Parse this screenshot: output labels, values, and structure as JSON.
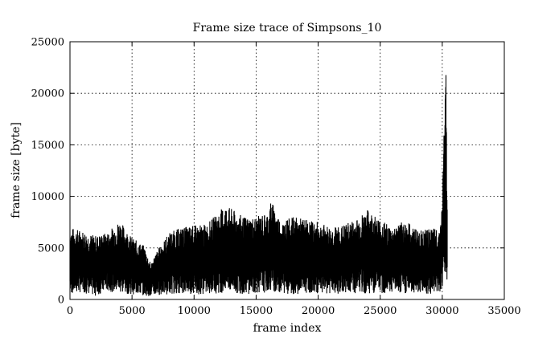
{
  "chart_data": {
    "type": "line",
    "title": "Frame size trace of Simpsons_10",
    "xlabel": "frame index",
    "ylabel": "frame size [byte]",
    "xlim": [
      0,
      35000
    ],
    "ylim": [
      0,
      25000
    ],
    "x_ticks": [
      "0",
      "5000",
      "10000",
      "15000",
      "20000",
      "25000",
      "30000",
      "35000"
    ],
    "y_ticks": [
      "0",
      "5000",
      "10000",
      "15000",
      "20000",
      "25000"
    ],
    "grid": "dotted",
    "series": [
      {
        "color": "#000000",
        "frame_count": 30400,
        "envelope": [
          {
            "x": 0,
            "low": 500,
            "high": 7000
          },
          {
            "x": 1000,
            "low": 700,
            "high": 6700
          },
          {
            "x": 2000,
            "low": 300,
            "high": 6200
          },
          {
            "x": 3000,
            "low": 800,
            "high": 6500
          },
          {
            "x": 4000,
            "low": 600,
            "high": 7700
          },
          {
            "x": 5000,
            "low": 500,
            "high": 6000
          },
          {
            "x": 6000,
            "low": 400,
            "high": 5200
          },
          {
            "x": 6500,
            "low": 300,
            "high": 3500
          },
          {
            "x": 7000,
            "low": 400,
            "high": 4700
          },
          {
            "x": 8000,
            "low": 500,
            "high": 6500
          },
          {
            "x": 9000,
            "low": 600,
            "high": 7000
          },
          {
            "x": 10000,
            "low": 500,
            "high": 7200
          },
          {
            "x": 11000,
            "low": 500,
            "high": 7300
          },
          {
            "x": 12000,
            "low": 600,
            "high": 8500
          },
          {
            "x": 12500,
            "low": 700,
            "high": 9200
          },
          {
            "x": 13000,
            "low": 600,
            "high": 8800
          },
          {
            "x": 14000,
            "low": 500,
            "high": 8000
          },
          {
            "x": 15000,
            "low": 600,
            "high": 8000
          },
          {
            "x": 16000,
            "low": 700,
            "high": 8500
          },
          {
            "x": 16200,
            "low": 800,
            "high": 9700
          },
          {
            "x": 17000,
            "low": 600,
            "high": 7600
          },
          {
            "x": 18000,
            "low": 500,
            "high": 8000
          },
          {
            "x": 19000,
            "low": 600,
            "high": 7800
          },
          {
            "x": 20000,
            "low": 600,
            "high": 7500
          },
          {
            "x": 21000,
            "low": 500,
            "high": 7000
          },
          {
            "x": 22000,
            "low": 600,
            "high": 7200
          },
          {
            "x": 23000,
            "low": 500,
            "high": 7800
          },
          {
            "x": 24000,
            "low": 600,
            "high": 8700
          },
          {
            "x": 25000,
            "low": 500,
            "high": 7800
          },
          {
            "x": 26000,
            "low": 600,
            "high": 7000
          },
          {
            "x": 27000,
            "low": 500,
            "high": 7700
          },
          {
            "x": 28000,
            "low": 600,
            "high": 6800
          },
          {
            "x": 29000,
            "low": 500,
            "high": 6800
          },
          {
            "x": 29800,
            "low": 700,
            "high": 7000
          },
          {
            "x": 30000,
            "low": 1000,
            "high": 9200
          },
          {
            "x": 30150,
            "low": 1500,
            "high": 18000
          },
          {
            "x": 30300,
            "low": 2000,
            "high": 22200
          },
          {
            "x": 30400,
            "low": 1000,
            "high": 9300
          }
        ]
      }
    ]
  }
}
